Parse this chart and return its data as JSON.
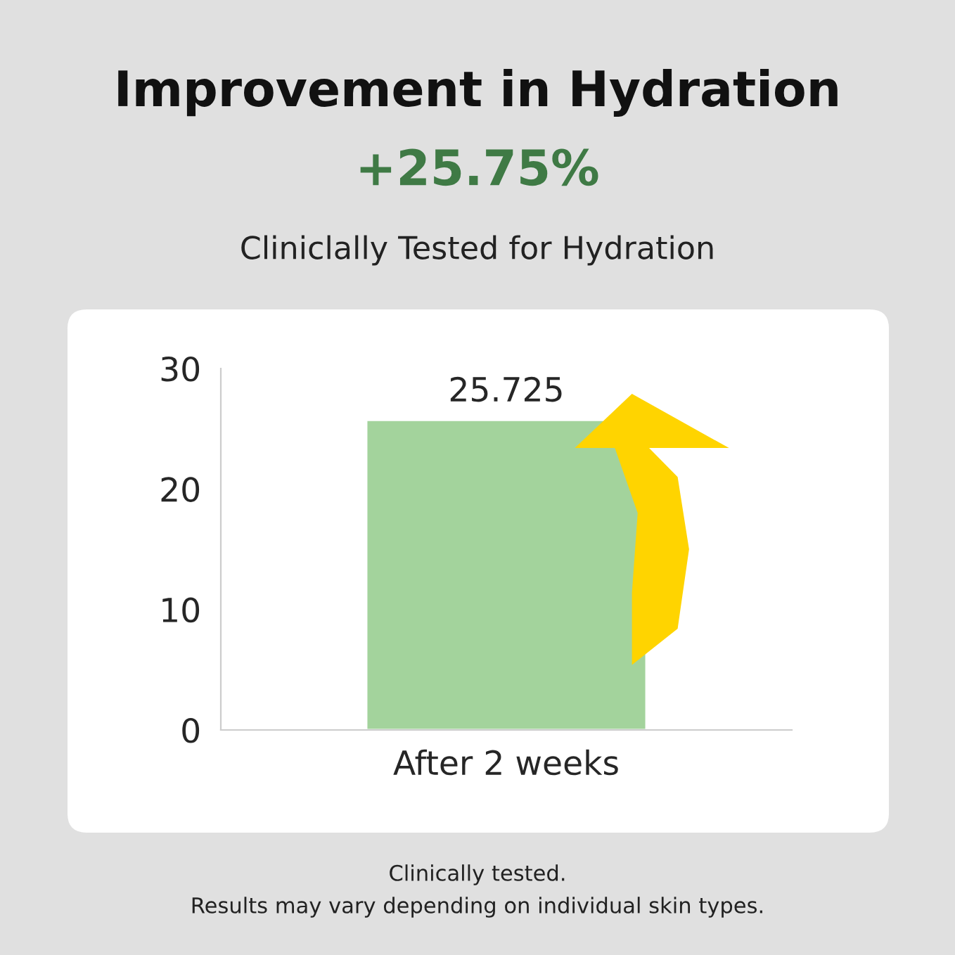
{
  "chart_data": {
    "type": "bar",
    "title": "Improvement in Hydration",
    "subtitle": "+25.75%",
    "annotations": [
      "Cliniclally Tested for Hydration",
      "Clinically tested.",
      "Results may vary depending on individual skin types."
    ],
    "categories": [
      "After 2 weeks"
    ],
    "values": [
      25.725
    ],
    "color": "#a3d39c",
    "ylim": [
      0,
      30
    ],
    "yticks": [
      0,
      10,
      20,
      30
    ],
    "data_labels": true,
    "grid": false,
    "legend": false
  }
}
